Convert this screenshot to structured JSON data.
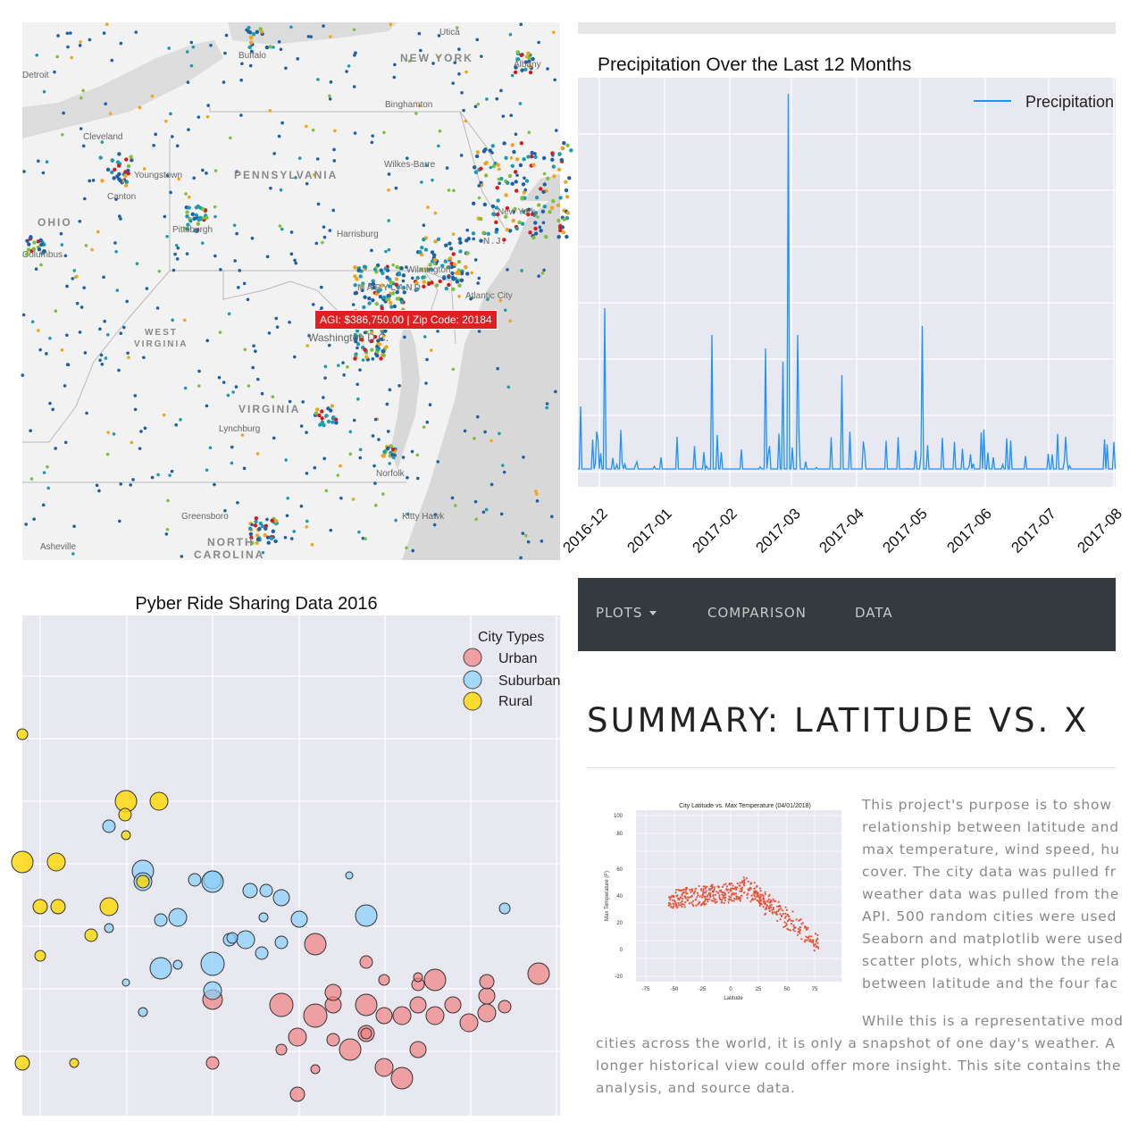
{
  "map": {
    "state_labels": [
      "NEW YORK",
      "PENNSYLVANIA",
      "OHIO",
      "WEST",
      "VIRGINIA",
      "VIRGINIA",
      "MARYLAND",
      "N.J.",
      "NORTH",
      "CAROLINA"
    ],
    "city_labels": [
      "Buffalo",
      "Utica",
      "Albany",
      "Binghamton",
      "Cleveland",
      "Youngstown",
      "Wilkes-Barre",
      "Canton",
      "New York",
      "Pittsburgh",
      "Harrisburg",
      "Columbus",
      "Wilmington",
      "Atlantic City",
      "Washington D.C.",
      "Lynchburg",
      "Norfolk",
      "Greensboro",
      "Kitty Hawk",
      "Asheville",
      "Detroit"
    ],
    "tooltip": "AGI: $386,750.00 | Zip Code: 20184",
    "colors": {
      "dot_blue": "#1f5fa6",
      "dot_teal": "#1e9ab0",
      "dot_orange": "#f2a31b",
      "dot_red": "#d7191c",
      "dot_green": "#7fbf3f"
    }
  },
  "precip": {
    "title": "Precipitation Over the Last 12 Months",
    "legend": "Precipitation",
    "x_ticks": [
      "2016-12",
      "2017-01",
      "2017-02",
      "2017-03",
      "2017-04",
      "2017-05",
      "2017-06",
      "2017-07",
      "2017-08"
    ],
    "line_color": "#1e90ff"
  },
  "pyber": {
    "title": "Pyber Ride Sharing Data 2016",
    "legend_title": "City Types",
    "legend": [
      "Urban",
      "Suburban",
      "Rural"
    ],
    "colors": {
      "urban": "#f08080",
      "suburban": "#87cefa",
      "rural": "#ffd700"
    }
  },
  "site": {
    "nav": {
      "plots": "PLOTS",
      "comparison": "COMPARISON",
      "data": "DATA"
    },
    "title": "SUMMARY: LATITUDE VS. X",
    "thumb": {
      "title": "City Latitude vs. Max Temperature (04/01/2018)",
      "xlabel": "Latitude",
      "ylabel": "Max Temperature (F)",
      "x_ticks": [
        "-75",
        "-50",
        "-25",
        "0",
        "25",
        "50",
        "75"
      ],
      "y_ticks": [
        "100",
        "80",
        "60",
        "40",
        "20",
        "0",
        "-20"
      ]
    },
    "paragraph1": [
      "This project's purpose is to show",
      "relationship between latitude and",
      "max temperature, wind speed, hu",
      "cover. The city data was pulled fr",
      "weather data was pulled from the",
      "API. 500 random cities were used",
      "Seaborn and matplotlib were used",
      "scatter plots, which show the rela",
      "between latitude and the four fac"
    ],
    "paragraph2_first": "While this is a representative mod",
    "paragraph2": [
      "cities across the world, it is only a snapshot of one day's weather. A",
      "longer historical view could offer more insight. This site contains the",
      "analysis, and source data."
    ]
  }
}
